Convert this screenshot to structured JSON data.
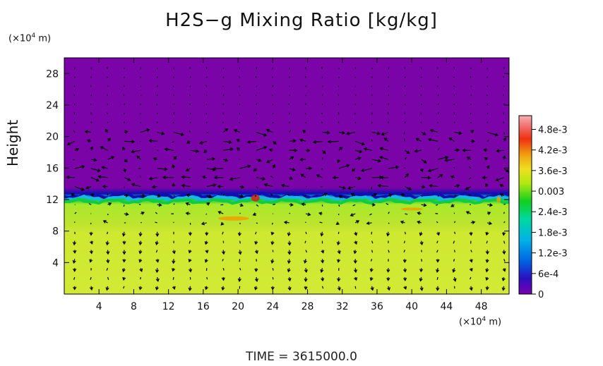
{
  "chart_data": {
    "type": "heatmap",
    "title": "H2S−g Mixing Ratio [kg/kg]",
    "ylabel": "Height",
    "y_unit_prefix": "(×10",
    "y_unit_exp": "4",
    "y_unit_suffix": " m)",
    "x_unit_prefix": "(×10",
    "x_unit_exp": "4",
    "x_unit_suffix": " m)",
    "x_ticks": [
      "4",
      "8",
      "12",
      "16",
      "20",
      "24",
      "28",
      "32",
      "36",
      "40",
      "44",
      "48"
    ],
    "x_tick_values": [
      4,
      8,
      12,
      16,
      20,
      24,
      28,
      32,
      36,
      40,
      44,
      48
    ],
    "y_ticks": [
      "4",
      "8",
      "12",
      "16",
      "20",
      "24",
      "28"
    ],
    "y_tick_values": [
      4,
      8,
      12,
      16,
      20,
      24,
      28
    ],
    "xlim": [
      0,
      51.2
    ],
    "ylim": [
      0,
      30
    ],
    "colorbar": {
      "labels": [
        "4.8e-3",
        "4.2e-3",
        "3.6e-3",
        "0.003",
        "2.4e-3",
        "1.8e-3",
        "1.2e-3",
        "6e-4",
        "0"
      ],
      "values": [
        0.0048,
        0.0042,
        0.0036,
        0.003,
        0.0024,
        0.0018,
        0.0012,
        0.0006,
        0
      ],
      "range": [
        0,
        0.0052
      ],
      "colors": [
        "#7a00b0",
        "#2a10c0",
        "#0060e0",
        "#00b0e8",
        "#00d8a0",
        "#10d020",
        "#b0e810",
        "#f0e020",
        "#f0a010",
        "#f03010",
        "#f07070",
        "#f8b0b0"
      ]
    },
    "field": {
      "upper_value": 0,
      "lower_value": 0.0031,
      "interface_height": 12.5,
      "colors": {
        "upper": "#7a04a8",
        "lower": "#cfe830",
        "transition_band": "#a8e82a",
        "interface_green": "#10cc40",
        "interface_cyan": "#18b8e0",
        "interface_blue": "#1010b0",
        "hotspot_orange": "#f0a000",
        "hotspot_red": "#e02010"
      }
    },
    "vectors": "wind velocity arrows overlay",
    "time_prefix": "TIME  =  ",
    "time_value": "3615000.0"
  }
}
